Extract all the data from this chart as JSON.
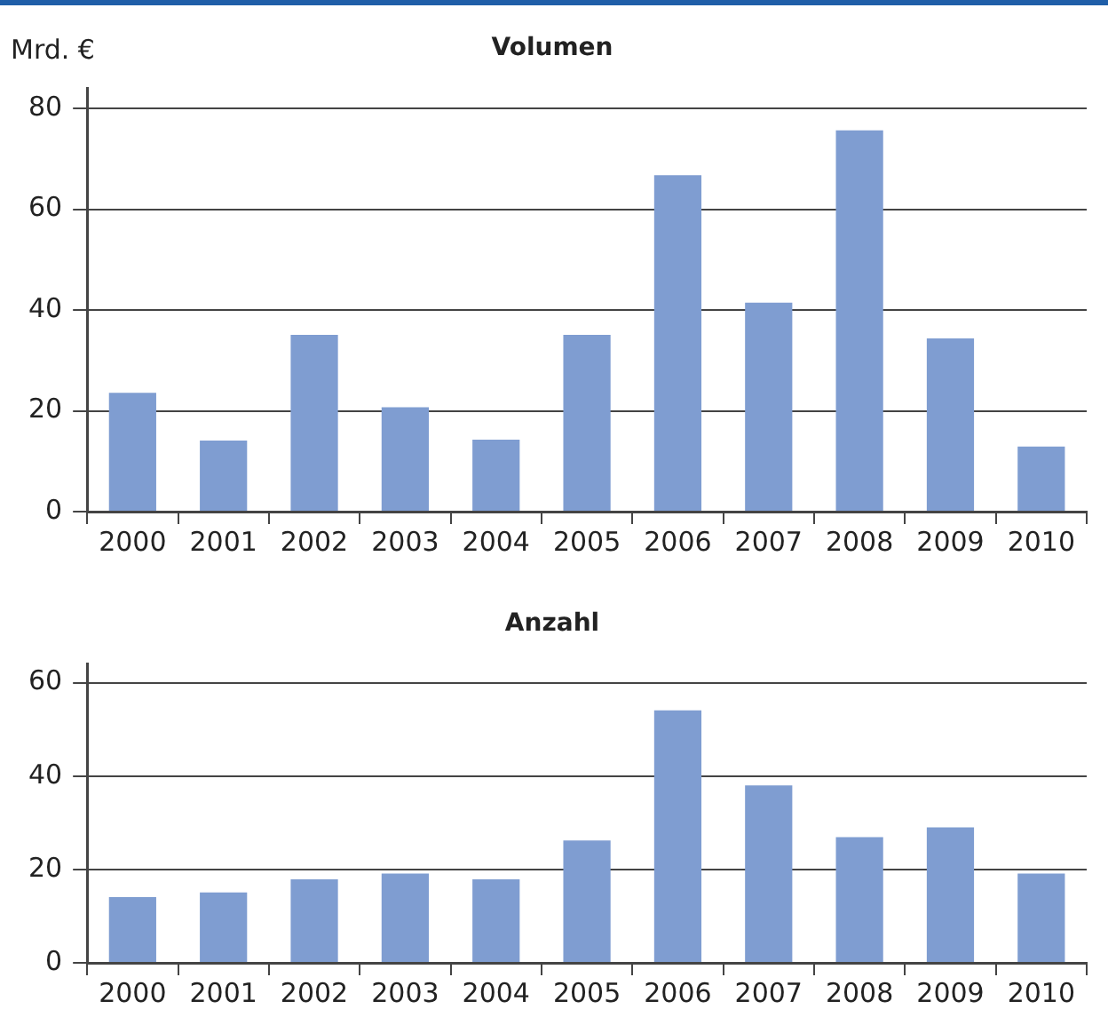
{
  "chart_data": [
    {
      "type": "bar",
      "title": "Volumen",
      "ylabel": "Mrd. €",
      "categories": [
        "2000",
        "2001",
        "2002",
        "2003",
        "2004",
        "2005",
        "2006",
        "2007",
        "2008",
        "2009",
        "2010"
      ],
      "values": [
        23.6,
        14.1,
        35.1,
        20.7,
        14.3,
        35.1,
        66.8,
        41.5,
        75.7,
        34.4,
        12.9
      ],
      "color": "#7f9dd1",
      "ylim": [
        0,
        84
      ],
      "yticks": [
        0,
        20,
        40,
        60,
        80
      ],
      "grid": "y"
    },
    {
      "type": "bar",
      "title": "Anzahl",
      "categories": [
        "2000",
        "2001",
        "2002",
        "2003",
        "2004",
        "2005",
        "2006",
        "2007",
        "2008",
        "2009",
        "2010"
      ],
      "values": [
        14.1,
        15.1,
        17.9,
        19.1,
        17.9,
        26.2,
        54.1,
        38.0,
        26.9,
        29.0,
        19.1
      ],
      "color": "#7f9dd1",
      "ylim": [
        0,
        64
      ],
      "yticks": [
        0,
        20,
        40,
        60
      ],
      "grid": "y"
    }
  ]
}
